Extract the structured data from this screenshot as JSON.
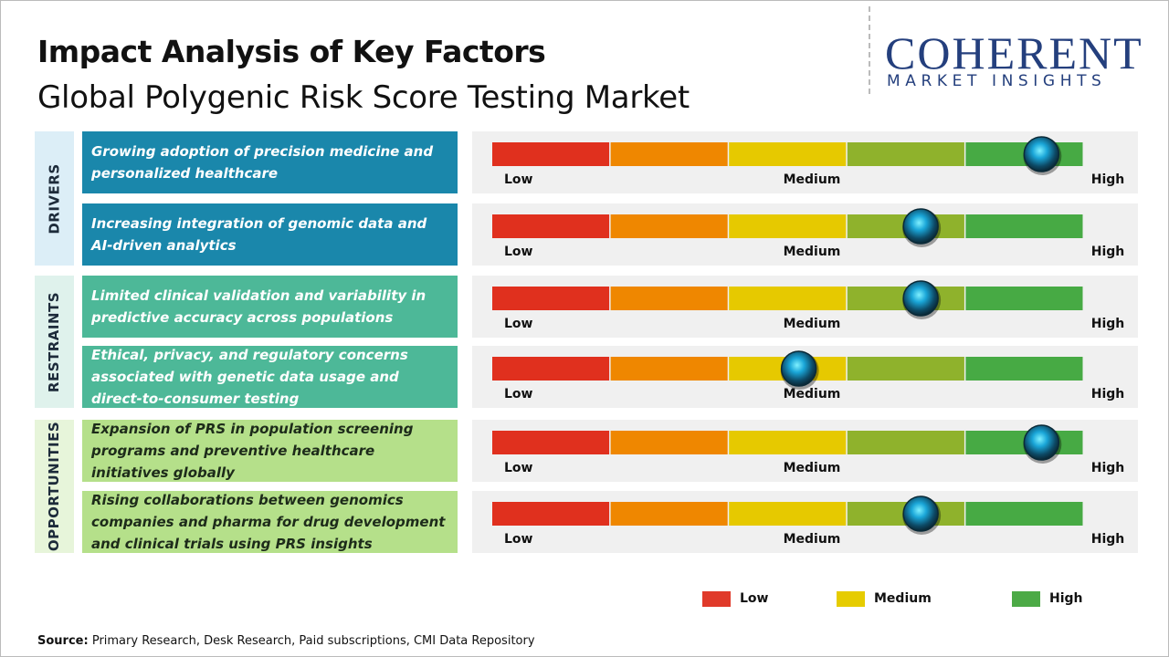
{
  "header": {
    "title": "Impact Analysis of Key Factors",
    "subtitle": "Global Polygenic Risk Score Testing Market"
  },
  "logo": {
    "name": "COHERENT",
    "tagline": "MARKET INSIGHTS"
  },
  "scale": {
    "xlim": [
      0,
      5
    ],
    "labels": [
      "Low",
      "Medium",
      "High"
    ],
    "colors": [
      "#e0301e",
      "#ef8700",
      "#e6c900",
      "#8fb22c",
      "#47aa44"
    ]
  },
  "groups": [
    {
      "name": "DRIVERS",
      "side_color": "#dceef7",
      "box_color": "#1a87ab",
      "text_color": "#ffffff",
      "factors": [
        {
          "text": "Growing adoption of precision medicine and personalized healthcare",
          "impact": 4.64
        },
        {
          "text": "Increasing integration of genomic data and AI-driven analytics",
          "impact": 3.62
        }
      ]
    },
    {
      "name": "RESTRAINTS",
      "side_color": "#dff2ec",
      "box_color": "#4db898",
      "text_color": "#ffffff",
      "factors": [
        {
          "text": "Limited clinical validation and variability in predictive accuracy across populations",
          "impact": 3.62
        },
        {
          "text": "Ethical, privacy, and regulatory concerns associated with genetic data usage and direct-to-consumer testing",
          "impact": 2.59
        }
      ]
    },
    {
      "name": "OPPORTUNITIES",
      "side_color": "#e7f5da",
      "box_color": "#b5e08a",
      "text_color": "#1d2b1a",
      "factors": [
        {
          "text": "Expansion of PRS in population screening programs and preventive healthcare initiatives globally",
          "impact": 4.64
        },
        {
          "text": "Rising collaborations between genomics companies and pharma for drug development and clinical trials using PRS insights",
          "impact": 3.62
        }
      ]
    }
  ],
  "legend": [
    {
      "label": "Low",
      "color": "#e03a2a"
    },
    {
      "label": "Medium",
      "color": "#e6cc00"
    },
    {
      "label": "High",
      "color": "#4caa46"
    }
  ],
  "source": {
    "label": "Source:",
    "text": "Primary Research, Desk Research, Paid subscriptions, CMI Data Repository"
  }
}
